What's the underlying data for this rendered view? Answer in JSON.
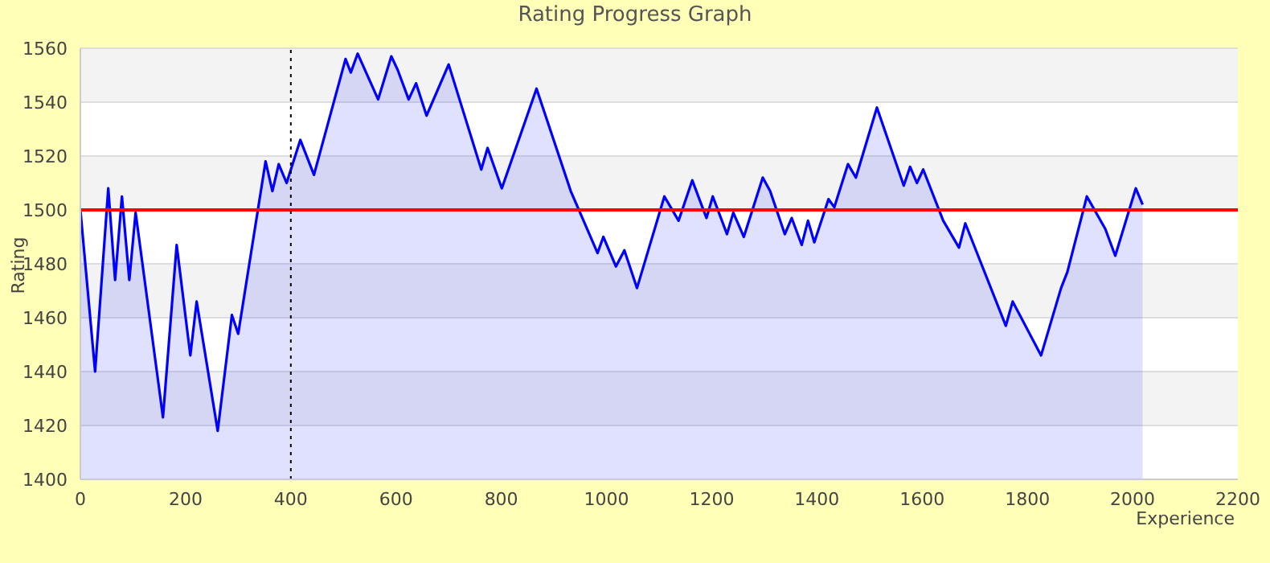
{
  "chart_data": {
    "type": "area",
    "title": "Rating Progress Graph",
    "xlabel": "Experience",
    "ylabel": "Rating",
    "x": [
      0,
      28,
      53,
      66,
      79,
      93,
      105,
      157,
      183,
      209,
      221,
      261,
      288,
      300,
      352,
      365,
      377,
      392,
      418,
      444,
      504,
      514,
      527,
      566,
      591,
      603,
      624,
      638,
      658,
      700,
      762,
      774,
      801,
      867,
      932,
      983,
      994,
      1018,
      1034,
      1058,
      1110,
      1137,
      1163,
      1190,
      1202,
      1229,
      1241,
      1261,
      1297,
      1311,
      1339,
      1352,
      1371,
      1383,
      1395,
      1422,
      1433,
      1459,
      1474,
      1514,
      1565,
      1577,
      1590,
      1602,
      1640,
      1670,
      1682,
      1759,
      1772,
      1826,
      1864,
      1876,
      1913,
      1948,
      1967,
      2006,
      2019
    ],
    "series": [
      {
        "color": "#0000ff",
        "values": [
          1500,
          1440,
          1508,
          1474,
          1505,
          1474,
          1499,
          1423,
          1487,
          1446,
          1466,
          1418,
          1461,
          1454,
          1518,
          1507,
          1517,
          1510,
          1526,
          1513,
          1556,
          1551,
          1558,
          1541,
          1557,
          1552,
          1541,
          1547,
          1535,
          1554,
          1515,
          1523,
          1508,
          1545,
          1507,
          1484,
          1490,
          1479,
          1485,
          1471,
          1505,
          1496,
          1511,
          1497,
          1505,
          1491,
          1499,
          1490,
          1512,
          1507,
          1491,
          1497,
          1487,
          1496,
          1488,
          1504,
          1501,
          1517,
          1512,
          1538,
          1509,
          1516,
          1510,
          1515,
          1496,
          1486,
          1495,
          1457,
          1466,
          1446,
          1471,
          1477,
          1505,
          1493,
          1483,
          1508,
          1502
        ]
      }
    ],
    "xlim": [
      0,
      2200
    ],
    "xticks": [
      0,
      200,
      400,
      600,
      800,
      1000,
      1200,
      1400,
      1600,
      1800,
      2000,
      2200
    ],
    "ylim": [
      1400,
      1560
    ],
    "yticks": [
      1400,
      1420,
      1440,
      1460,
      1480,
      1500,
      1520,
      1540,
      1560
    ],
    "grid": "y",
    "marker": "none",
    "line_style": "solid",
    "ref_lines": [
      {
        "axis": "y",
        "value": 1500,
        "color": "#ff0000",
        "line_style": "solid"
      },
      {
        "axis": "x",
        "value": 400,
        "color": "#000000",
        "line_style": "dotted"
      }
    ]
  }
}
